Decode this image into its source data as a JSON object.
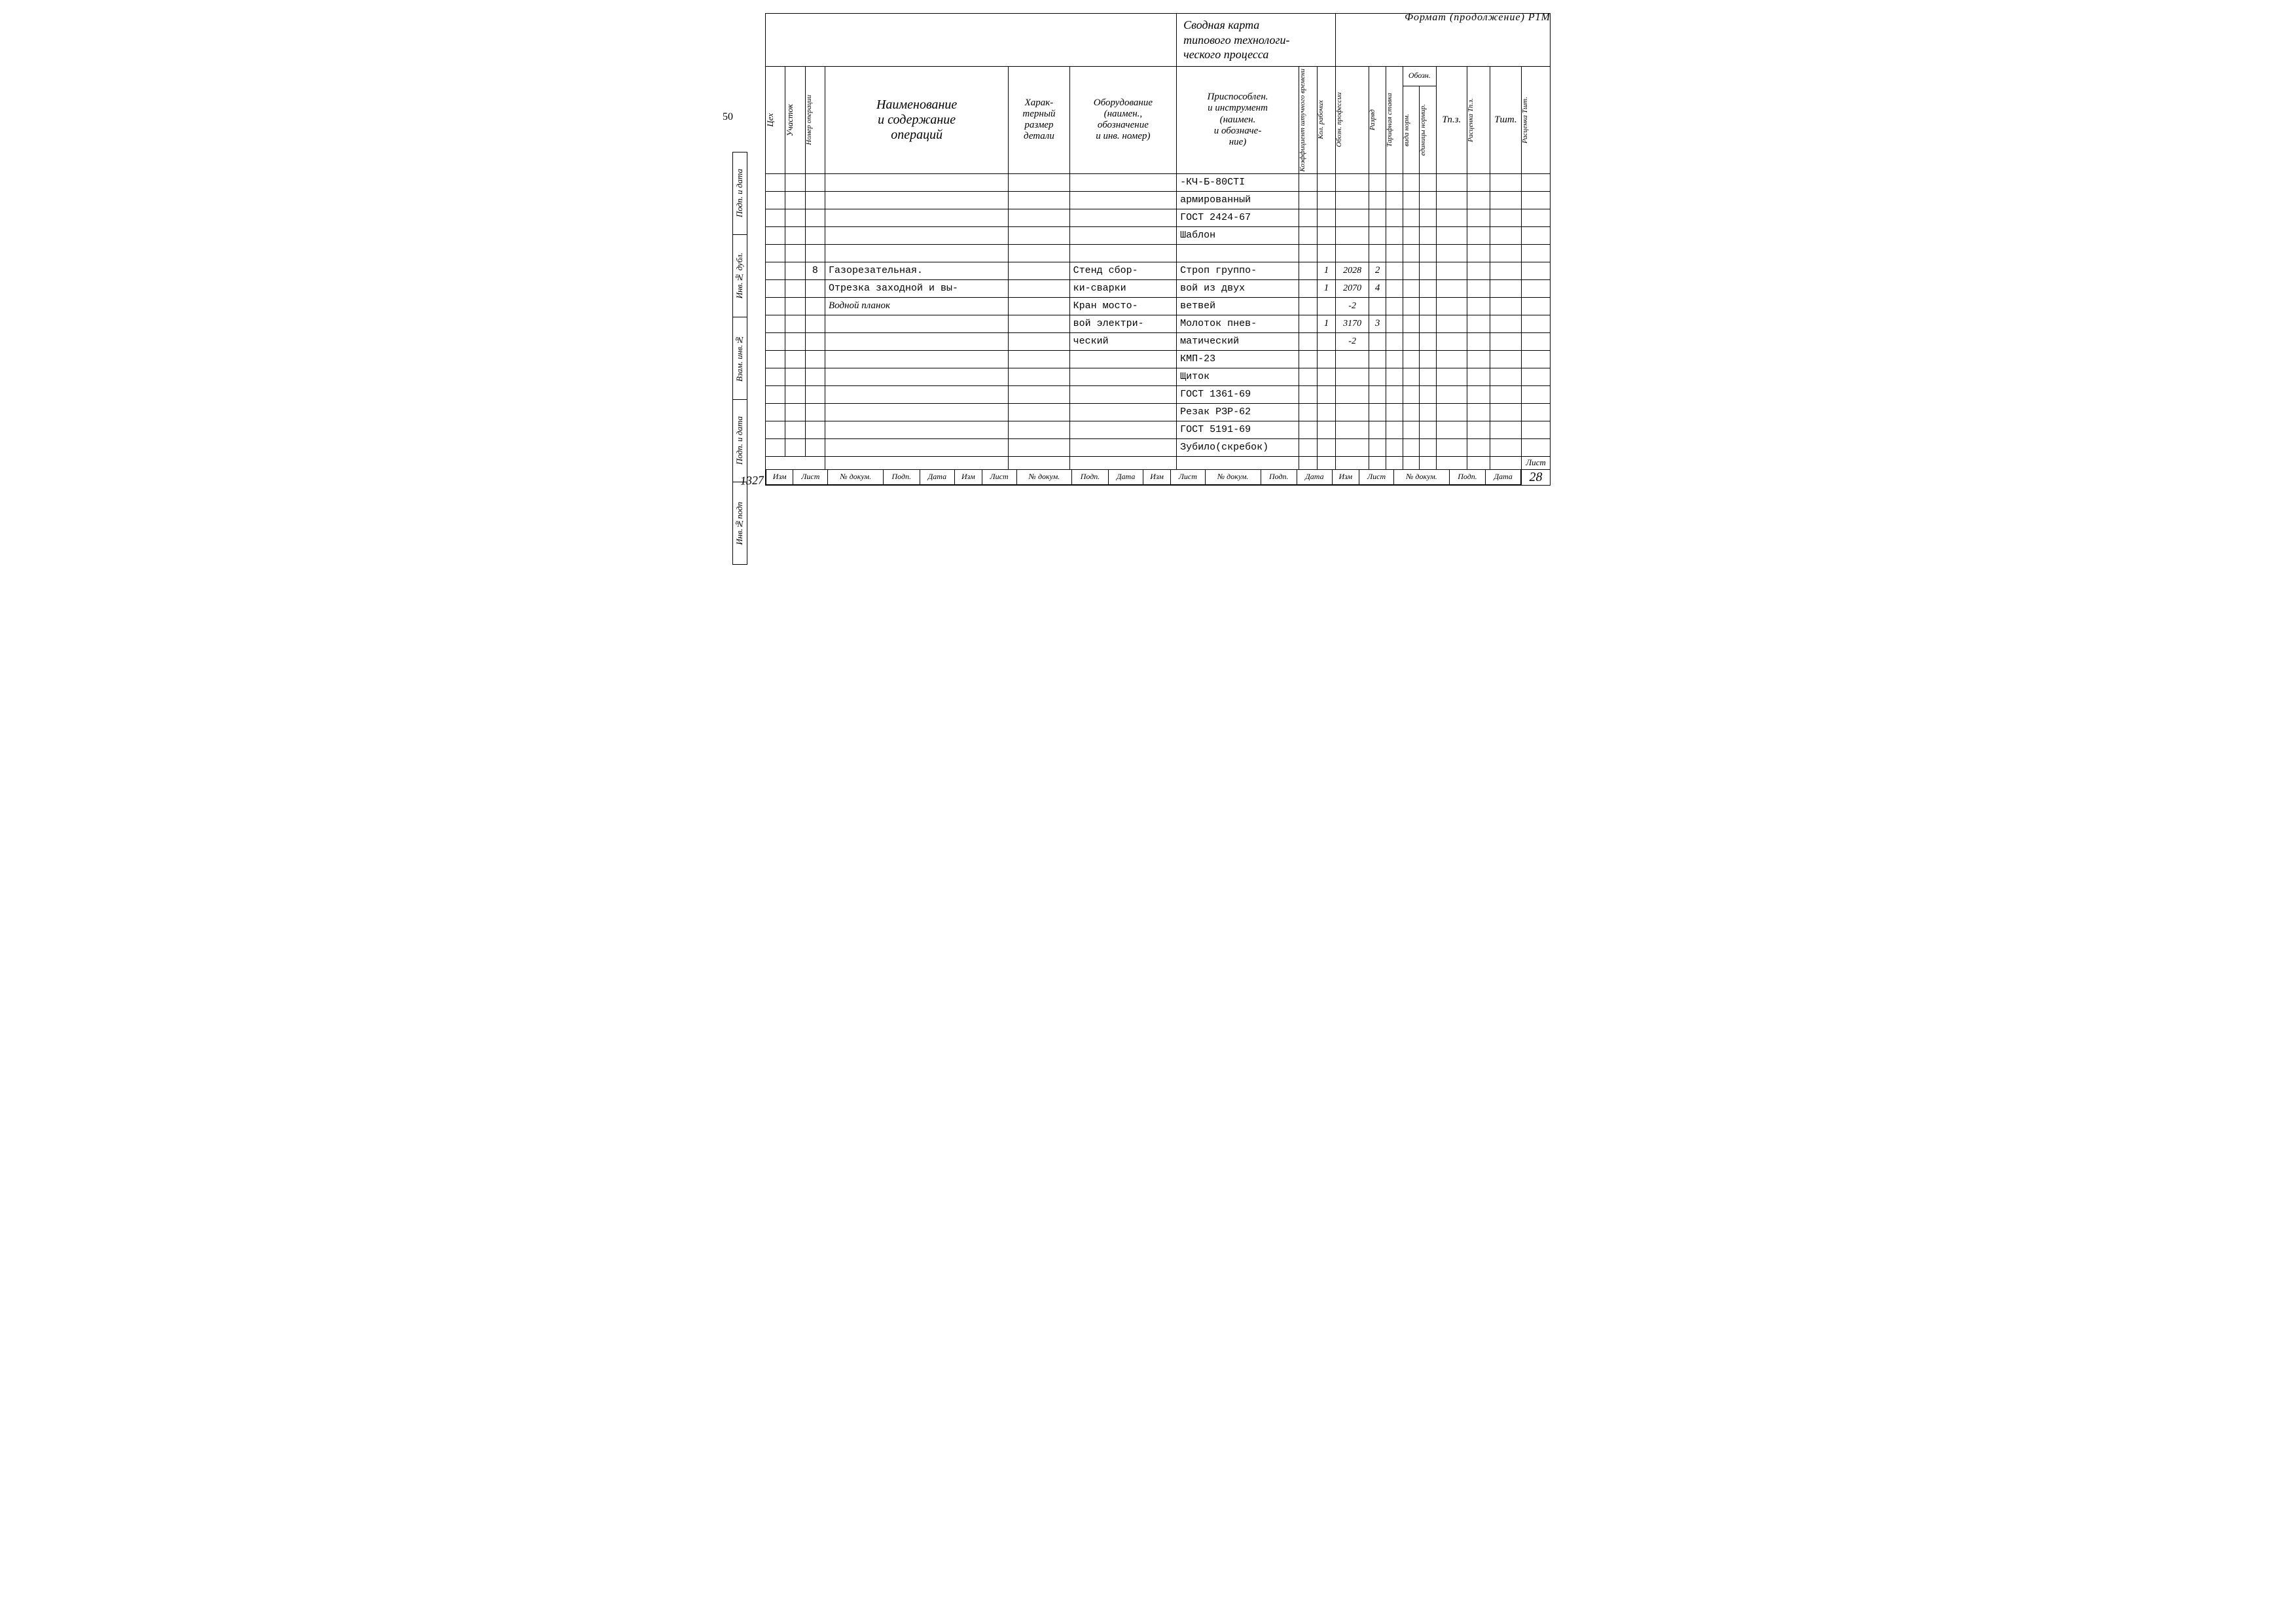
{
  "top_note": "Формат (продолжение) Р1М",
  "left_page_num": "50",
  "doc_number": "1327",
  "title_lines": [
    "Сводная   карта",
    "типового техноло­ги-",
    "ческого процесса"
  ],
  "side_labels": [
    "Инв.№подп",
    "Подп. и дата",
    "Взам. инв.№",
    "Инв.№ дубл.",
    "Подп. и дата"
  ],
  "col_heads": {
    "c1": "Цех",
    "c2": "Участок",
    "c3": "Номер операции",
    "c4": [
      "Наименование",
      "и содержание",
      "операций"
    ],
    "c5": [
      "Харак-",
      "терный",
      "размер",
      "детали"
    ],
    "c6": [
      "Оборудование",
      "(наимен.,",
      "обозначение",
      "и инв. номер)"
    ],
    "c7": [
      "Приспособлен.",
      "и инструмент",
      "(наимен.",
      "и обозначе-",
      "ние)"
    ],
    "c8": "Коэффициент штучного времени",
    "c9": "Кол. рабочих",
    "c10": "Обозн. профессии",
    "c11": "Разряд",
    "c12": "Тарифная ставка",
    "group_obozn": "Обозн.",
    "c13": "вида норм.",
    "c14": "единицы нормир.",
    "c15": "Тп.з.",
    "c16": "Расценка Тп.з.",
    "c17": "Тшт.",
    "c18": "Расценка Тшт."
  },
  "rows": [
    {
      "op": "",
      "name": "",
      "eq": "",
      "tool": "-КЧ-Б-80СТI",
      "kr": "",
      "prof": "",
      "razr": ""
    },
    {
      "op": "",
      "name": "",
      "eq": "",
      "tool": "армированный",
      "kr": "",
      "prof": "",
      "razr": ""
    },
    {
      "op": "",
      "name": "",
      "eq": "",
      "tool": "ГОСТ 2424-67",
      "kr": "",
      "prof": "",
      "razr": ""
    },
    {
      "op": "",
      "name": "",
      "eq": "",
      "tool": "Шаблон",
      "kr": "",
      "prof": "",
      "razr": ""
    },
    {
      "op": "",
      "name": "",
      "eq": "",
      "tool": "",
      "kr": "",
      "prof": "",
      "razr": ""
    },
    {
      "op": "8",
      "name": "Газорезательная.",
      "eq": "Стенд сбор-",
      "tool": "Строп группо-",
      "kr": "1",
      "prof": "2028",
      "razr": "2"
    },
    {
      "op": "",
      "name": "Отрезка заходной и вы-",
      "eq": "ки-сварки",
      "tool": "вой из двух",
      "kr": "1",
      "prof": "2070",
      "razr": "4"
    },
    {
      "op": "",
      "name": "Водной планок",
      "name_hand": true,
      "eq": "Кран мосто-",
      "tool": "ветвей",
      "kr": "",
      "prof": "-2",
      "razr": ""
    },
    {
      "op": "",
      "name": "",
      "eq": "вой электри-",
      "tool": "Молоток пнев-",
      "kr": "1",
      "prof": "3170",
      "razr": "3"
    },
    {
      "op": "",
      "name": "",
      "eq": "ческий",
      "tool": "матический",
      "kr": "",
      "prof": "-2",
      "razr": ""
    },
    {
      "op": "",
      "name": "",
      "eq": "",
      "tool": "КМП-23",
      "kr": "",
      "prof": "",
      "razr": ""
    },
    {
      "op": "",
      "name": "",
      "eq": "",
      "tool": "Щиток",
      "kr": "",
      "prof": "",
      "razr": ""
    },
    {
      "op": "",
      "name": "",
      "eq": "",
      "tool": "ГОСТ 1361-69",
      "kr": "",
      "prof": "",
      "razr": ""
    },
    {
      "op": "",
      "name": "",
      "eq": "",
      "tool": "Резак РЗР-62",
      "kr": "",
      "prof": "",
      "razr": ""
    },
    {
      "op": "",
      "name": "",
      "eq": "",
      "tool": "ГОСТ 5191-69",
      "kr": "",
      "prof": "",
      "razr": ""
    },
    {
      "op": "",
      "name": "",
      "eq": "",
      "tool": "Зубило(скребок)",
      "kr": "",
      "prof": "",
      "razr": ""
    }
  ],
  "footer": {
    "labels": [
      "Изм",
      "Лист",
      "№ докум.",
      "Подп.",
      "Дата",
      "Изм",
      "Лист",
      "№ докум.",
      "Подп.",
      "Дата",
      "Изм",
      "Лист",
      "№ докум.",
      "Подп.",
      "Дата",
      "Изм",
      "Лист",
      "№ докум.",
      "Подп.",
      "Дата"
    ],
    "sheet_word": "Лист",
    "sheet_num": "28"
  }
}
